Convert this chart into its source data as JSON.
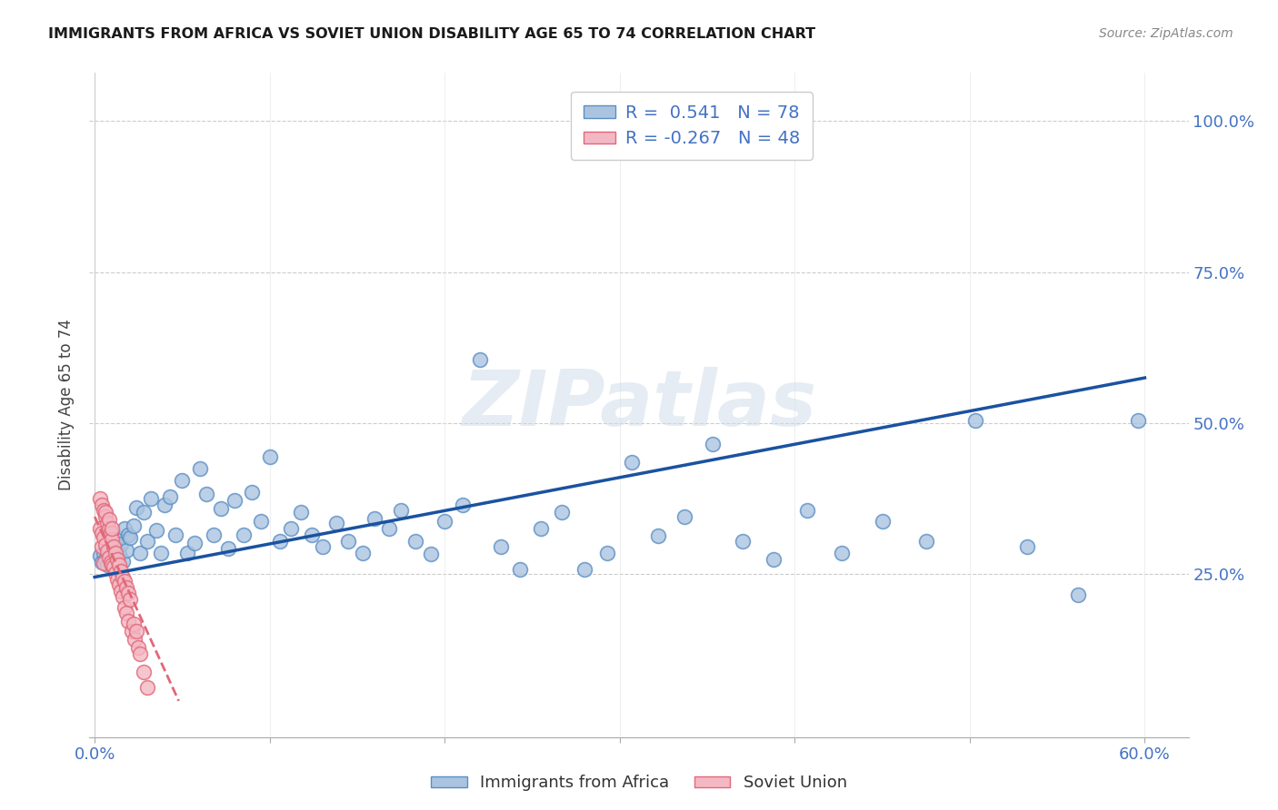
{
  "title": "IMMIGRANTS FROM AFRICA VS SOVIET UNION DISABILITY AGE 65 TO 74 CORRELATION CHART",
  "source": "Source: ZipAtlas.com",
  "ylabel": "Disability Age 65 to 74",
  "xlim": [
    -0.003,
    0.625
  ],
  "ylim": [
    -0.02,
    1.08
  ],
  "xticks": [
    0.0,
    0.1,
    0.2,
    0.3,
    0.4,
    0.5,
    0.6
  ],
  "xticklabels": [
    "0.0%",
    "",
    "",
    "",
    "",
    "",
    "60.0%"
  ],
  "yticks": [
    0.25,
    0.5,
    0.75,
    1.0
  ],
  "yticklabels": [
    "25.0%",
    "50.0%",
    "75.0%",
    "100.0%"
  ],
  "africa_color": "#aac4e0",
  "africa_edge": "#5b8ec4",
  "soviet_color": "#f4b8c4",
  "soviet_edge": "#e06878",
  "trend_africa_color": "#1a52a0",
  "trend_soviet_color": "#e06878",
  "trend_africa_x0": 0.0,
  "trend_africa_y0": 0.245,
  "trend_africa_x1": 0.6,
  "trend_africa_y1": 0.575,
  "trend_soviet_x0": 0.0,
  "trend_soviet_y0": 0.345,
  "trend_soviet_x1": 0.048,
  "trend_soviet_y1": 0.04,
  "R_africa": 0.541,
  "N_africa": 78,
  "R_soviet": -0.267,
  "N_soviet": 48,
  "legend_africa": "Immigrants from Africa",
  "legend_soviet": "Soviet Union",
  "watermark": "ZIPatlas",
  "africa_x": [
    0.003,
    0.004,
    0.005,
    0.006,
    0.007,
    0.008,
    0.009,
    0.01,
    0.011,
    0.012,
    0.013,
    0.014,
    0.015,
    0.016,
    0.017,
    0.018,
    0.019,
    0.02,
    0.022,
    0.024,
    0.026,
    0.028,
    0.03,
    0.032,
    0.035,
    0.038,
    0.04,
    0.043,
    0.046,
    0.05,
    0.053,
    0.057,
    0.06,
    0.064,
    0.068,
    0.072,
    0.076,
    0.08,
    0.085,
    0.09,
    0.095,
    0.1,
    0.106,
    0.112,
    0.118,
    0.124,
    0.13,
    0.138,
    0.145,
    0.153,
    0.16,
    0.168,
    0.175,
    0.183,
    0.192,
    0.2,
    0.21,
    0.22,
    0.232,
    0.243,
    0.255,
    0.267,
    0.28,
    0.293,
    0.307,
    0.322,
    0.337,
    0.353,
    0.37,
    0.388,
    0.407,
    0.427,
    0.45,
    0.475,
    0.503,
    0.533,
    0.562,
    0.596
  ],
  "africa_y": [
    0.28,
    0.27,
    0.285,
    0.275,
    0.265,
    0.29,
    0.278,
    0.268,
    0.295,
    0.273,
    0.31,
    0.283,
    0.3,
    0.272,
    0.325,
    0.29,
    0.315,
    0.31,
    0.33,
    0.36,
    0.285,
    0.352,
    0.305,
    0.375,
    0.322,
    0.285,
    0.365,
    0.378,
    0.315,
    0.405,
    0.285,
    0.302,
    0.425,
    0.382,
    0.315,
    0.358,
    0.292,
    0.372,
    0.315,
    0.385,
    0.338,
    0.445,
    0.305,
    0.325,
    0.352,
    0.315,
    0.295,
    0.335,
    0.305,
    0.285,
    0.342,
    0.325,
    0.355,
    0.305,
    0.283,
    0.338,
    0.365,
    0.605,
    0.295,
    0.258,
    0.325,
    0.352,
    0.258,
    0.285,
    0.435,
    0.313,
    0.345,
    0.465,
    0.305,
    0.275,
    0.355,
    0.285,
    0.338,
    0.305,
    0.505,
    0.295,
    0.215,
    0.505
  ],
  "soviet_x": [
    0.003,
    0.003,
    0.004,
    0.004,
    0.004,
    0.005,
    0.005,
    0.005,
    0.006,
    0.006,
    0.006,
    0.007,
    0.007,
    0.008,
    0.008,
    0.008,
    0.009,
    0.009,
    0.01,
    0.01,
    0.01,
    0.011,
    0.011,
    0.012,
    0.012,
    0.013,
    0.013,
    0.014,
    0.014,
    0.015,
    0.015,
    0.016,
    0.016,
    0.017,
    0.017,
    0.018,
    0.018,
    0.019,
    0.019,
    0.02,
    0.021,
    0.022,
    0.023,
    0.024,
    0.025,
    0.026,
    0.028,
    0.03
  ],
  "soviet_y": [
    0.375,
    0.325,
    0.365,
    0.318,
    0.295,
    0.355,
    0.31,
    0.268,
    0.345,
    0.298,
    0.352,
    0.335,
    0.288,
    0.325,
    0.278,
    0.34,
    0.318,
    0.27,
    0.308,
    0.265,
    0.325,
    0.295,
    0.262,
    0.285,
    0.252,
    0.275,
    0.242,
    0.265,
    0.232,
    0.255,
    0.222,
    0.245,
    0.212,
    0.238,
    0.195,
    0.228,
    0.185,
    0.218,
    0.172,
    0.208,
    0.155,
    0.168,
    0.142,
    0.155,
    0.128,
    0.118,
    0.088,
    0.062
  ]
}
